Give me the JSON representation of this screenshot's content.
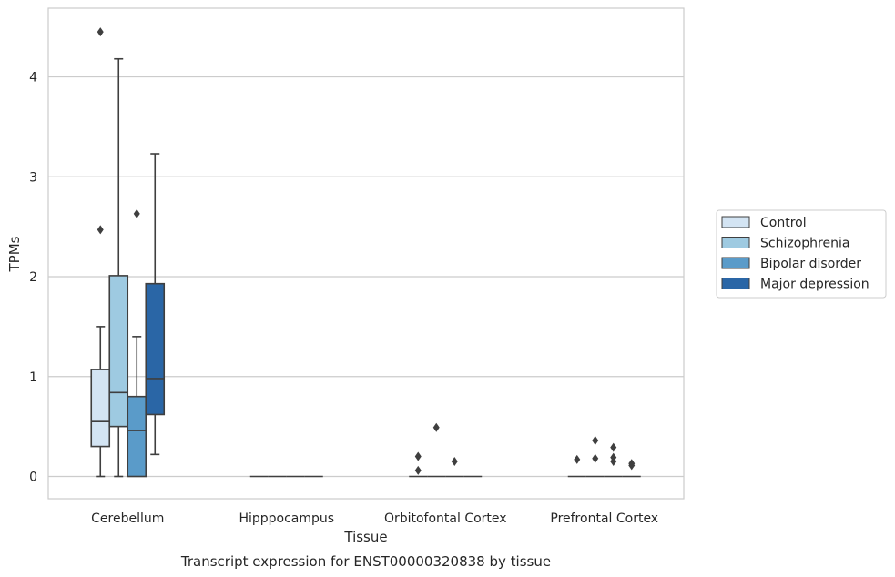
{
  "chart_data": {
    "type": "box",
    "caption": "Transcript expression for ENST00000320838 by tissue",
    "xlabel": "Tissue",
    "ylabel": "TPMs",
    "ylim": [
      -0.22,
      4.7
    ],
    "yticks": [
      0,
      1,
      2,
      3,
      4
    ],
    "grid": "horizontal",
    "legend_position": "right",
    "categories": [
      "Cerebellum",
      "Hipppocampus",
      "Orbitofontal Cortex",
      "Prefrontal Cortex"
    ],
    "series": [
      {
        "name": "Control",
        "color": "#d3e4f3",
        "boxes": [
          {
            "whisker_low": 0.0,
            "q1": 0.3,
            "median": 0.55,
            "q3": 1.07,
            "whisker_high": 1.5,
            "outliers": [
              2.47,
              4.45
            ]
          },
          {
            "whisker_low": 0.0,
            "q1": 0.0,
            "median": 0.0,
            "q3": 0.0,
            "whisker_high": 0.0,
            "outliers": []
          },
          {
            "whisker_low": 0.0,
            "q1": 0.0,
            "median": 0.0,
            "q3": 0.0,
            "whisker_high": 0.0,
            "outliers": [
              0.06,
              0.2
            ]
          },
          {
            "whisker_low": 0.0,
            "q1": 0.0,
            "median": 0.0,
            "q3": 0.0,
            "whisker_high": 0.0,
            "outliers": [
              0.17
            ]
          }
        ]
      },
      {
        "name": "Schizophrenia",
        "color": "#9ecae1",
        "boxes": [
          {
            "whisker_low": 0.0,
            "q1": 0.5,
            "median": 0.84,
            "q3": 2.01,
            "whisker_high": 4.18,
            "outliers": []
          },
          {
            "whisker_low": 0.0,
            "q1": 0.0,
            "median": 0.0,
            "q3": 0.0,
            "whisker_high": 0.0,
            "outliers": []
          },
          {
            "whisker_low": 0.0,
            "q1": 0.0,
            "median": 0.0,
            "q3": 0.0,
            "whisker_high": 0.0,
            "outliers": [
              0.49
            ]
          },
          {
            "whisker_low": 0.0,
            "q1": 0.0,
            "median": 0.0,
            "q3": 0.0,
            "whisker_high": 0.0,
            "outliers": [
              0.18,
              0.36
            ]
          }
        ]
      },
      {
        "name": "Bipolar disorder",
        "color": "#5a9bc9",
        "boxes": [
          {
            "whisker_low": 0.0,
            "q1": 0.0,
            "median": 0.46,
            "q3": 0.8,
            "whisker_high": 1.4,
            "outliers": [
              2.63
            ]
          },
          {
            "whisker_low": 0.0,
            "q1": 0.0,
            "median": 0.0,
            "q3": 0.0,
            "whisker_high": 0.0,
            "outliers": []
          },
          {
            "whisker_low": 0.0,
            "q1": 0.0,
            "median": 0.0,
            "q3": 0.0,
            "whisker_high": 0.0,
            "outliers": [
              0.15
            ]
          },
          {
            "whisker_low": 0.0,
            "q1": 0.0,
            "median": 0.0,
            "q3": 0.0,
            "whisker_high": 0.0,
            "outliers": [
              0.15,
              0.19,
              0.29
            ]
          }
        ]
      },
      {
        "name": "Major depression",
        "color": "#2a66a6",
        "boxes": [
          {
            "whisker_low": 0.22,
            "q1": 0.62,
            "median": 0.98,
            "q3": 1.93,
            "whisker_high": 3.23,
            "outliers": []
          },
          {
            "whisker_low": 0.0,
            "q1": 0.0,
            "median": 0.0,
            "q3": 0.0,
            "whisker_high": 0.0,
            "outliers": []
          },
          {
            "whisker_low": 0.0,
            "q1": 0.0,
            "median": 0.0,
            "q3": 0.0,
            "whisker_high": 0.0,
            "outliers": []
          },
          {
            "whisker_low": 0.0,
            "q1": 0.0,
            "median": 0.0,
            "q3": 0.0,
            "whisker_high": 0.0,
            "outliers": [
              0.11,
              0.13
            ]
          }
        ]
      }
    ]
  }
}
